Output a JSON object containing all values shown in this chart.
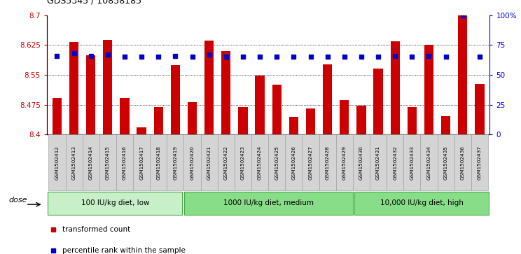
{
  "title": "GDS5345 / 10858185",
  "samples": [
    "GSM1502412",
    "GSM1502413",
    "GSM1502414",
    "GSM1502415",
    "GSM1502416",
    "GSM1502417",
    "GSM1502418",
    "GSM1502419",
    "GSM1502420",
    "GSM1502421",
    "GSM1502422",
    "GSM1502423",
    "GSM1502424",
    "GSM1502425",
    "GSM1502426",
    "GSM1502427",
    "GSM1502428",
    "GSM1502429",
    "GSM1502430",
    "GSM1502431",
    "GSM1502432",
    "GSM1502433",
    "GSM1502434",
    "GSM1502435",
    "GSM1502436",
    "GSM1502437"
  ],
  "bar_values": [
    8.492,
    8.632,
    8.6,
    8.638,
    8.492,
    8.418,
    8.47,
    8.575,
    8.482,
    8.636,
    8.61,
    8.47,
    8.548,
    8.525,
    8.444,
    8.466,
    8.576,
    8.487,
    8.473,
    8.566,
    8.635,
    8.47,
    8.626,
    8.447,
    8.7,
    8.528
  ],
  "percentile_values": [
    66,
    68,
    66,
    67,
    65,
    65,
    65,
    66,
    65,
    67,
    65,
    65,
    65,
    65,
    65,
    65,
    65,
    65,
    65,
    65,
    66,
    65,
    66,
    65,
    100,
    65
  ],
  "ylim_left": [
    8.4,
    8.7
  ],
  "ylim_right": [
    0,
    100
  ],
  "yticks_left": [
    8.4,
    8.475,
    8.55,
    8.625,
    8.7
  ],
  "ytick_labels_left": [
    "8.4",
    "8.475",
    "8.55",
    "8.625",
    "8.7"
  ],
  "yticks_right": [
    0,
    25,
    50,
    75,
    100
  ],
  "ytick_labels_right": [
    "0",
    "25",
    "50",
    "75",
    "100%"
  ],
  "groups": [
    {
      "label": "100 IU/kg diet, low",
      "start": 0,
      "end": 8
    },
    {
      "label": "1000 IU/kg diet, medium",
      "start": 8,
      "end": 18
    },
    {
      "label": "10,000 IU/kg diet, high",
      "start": 18,
      "end": 26
    }
  ],
  "bar_color": "#CC0000",
  "dot_color": "#0000CC",
  "plot_bg_color": "#FFFFFF",
  "tick_bg_color": "#D8D8D8",
  "group_fill_light": "#C8F0C8",
  "group_fill_dark": "#88DD88",
  "group_border": "#44AA44",
  "dose_label": "dose",
  "legend_items": [
    {
      "label": "transformed count",
      "color": "#CC0000"
    },
    {
      "label": "percentile rank within the sample",
      "color": "#0000CC"
    }
  ]
}
